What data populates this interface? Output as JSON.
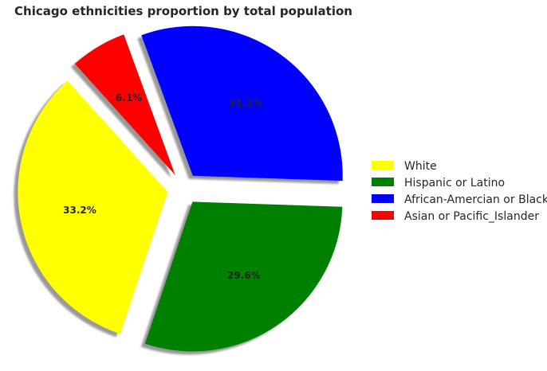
{
  "chart_data": {
    "type": "pie",
    "title": "Chicago ethnicities proportion by total population",
    "categories": [
      "White",
      "Hispanic or Latino",
      "African-Amercian or Black",
      "Asian or Pacific_Islander"
    ],
    "values": [
      33.2,
      29.6,
      31.1,
      6.1
    ],
    "value_labels": [
      "33.2%",
      "29.6%",
      "31.1%",
      "6.1%"
    ],
    "colors": [
      "#ffff00",
      "#008000",
      "#0000ff",
      "#ff0000"
    ],
    "exploded": true,
    "shadow": true,
    "legend": "right"
  }
}
